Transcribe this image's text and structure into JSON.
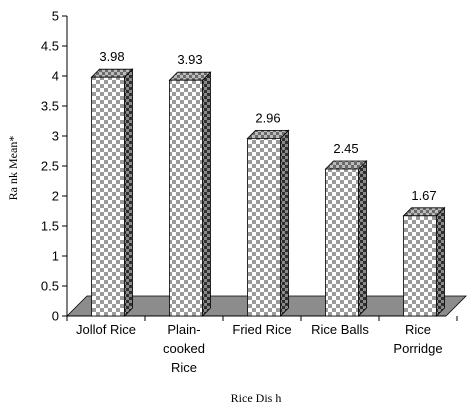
{
  "chart_data": {
    "type": "bar",
    "categories": [
      "Jollof Rice",
      "Plain-cooked Rice",
      "Fried Rice",
      "Rice Balls",
      "Rice Porridge"
    ],
    "category_lines": [
      [
        "Jollof Rice"
      ],
      [
        "Plain-",
        "cooked",
        "Rice"
      ],
      [
        "Fried Rice"
      ],
      [
        "Rice Balls"
      ],
      [
        "Rice",
        "Porridge"
      ]
    ],
    "values": [
      3.98,
      3.93,
      2.96,
      2.45,
      1.67
    ],
    "value_labels": [
      "3.98",
      "3.93",
      "2.96",
      "2.45",
      "1.67"
    ],
    "title": "",
    "xlabel": "Rice  Dis h",
    "ylabel": "Ra nk Mean*",
    "ylim": [
      0,
      5
    ],
    "yticks": [
      0,
      0.5,
      1,
      1.5,
      2,
      2.5,
      3,
      3.5,
      4,
      4.5,
      5
    ],
    "ytick_labels": [
      "0",
      "0.5",
      "1",
      "1.5",
      "2",
      "2.5",
      "3",
      "3.5",
      "4",
      "4.5",
      "5"
    ],
    "grid": false,
    "legend": "none",
    "style": "3d-bar-checkered",
    "colors": {
      "bar_face": "#ffffff",
      "bar_check": "#9a9a9a",
      "bar_side_dark": "#3c3c3c",
      "bar_side_light": "#8a8a8a",
      "floor": "#8c8c8c",
      "axis": "#000000"
    }
  }
}
